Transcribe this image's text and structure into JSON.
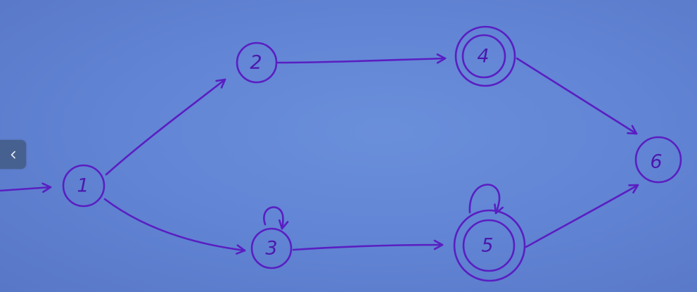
{
  "diagram": {
    "states": [
      {
        "id": "1",
        "label": "1",
        "accepting": false,
        "initial": true
      },
      {
        "id": "2",
        "label": "2",
        "accepting": false
      },
      {
        "id": "3",
        "label": "3",
        "accepting": false,
        "self_loop": true
      },
      {
        "id": "4",
        "label": "4",
        "accepting": true
      },
      {
        "id": "5",
        "label": "5",
        "accepting": true,
        "self_loop": true
      },
      {
        "id": "6",
        "label": "6",
        "accepting": false
      }
    ],
    "transitions": [
      {
        "from": "1",
        "to": "2"
      },
      {
        "from": "1",
        "to": "3"
      },
      {
        "from": "2",
        "to": "4"
      },
      {
        "from": "3",
        "to": "3"
      },
      {
        "from": "3",
        "to": "5"
      },
      {
        "from": "4",
        "to": "6"
      },
      {
        "from": "5",
        "to": "5"
      },
      {
        "from": "5",
        "to": "6"
      }
    ],
    "ink_color": "#5a1ec2",
    "background_color": "#6285d5"
  },
  "nav": {
    "icon": "chevron-left-icon"
  }
}
